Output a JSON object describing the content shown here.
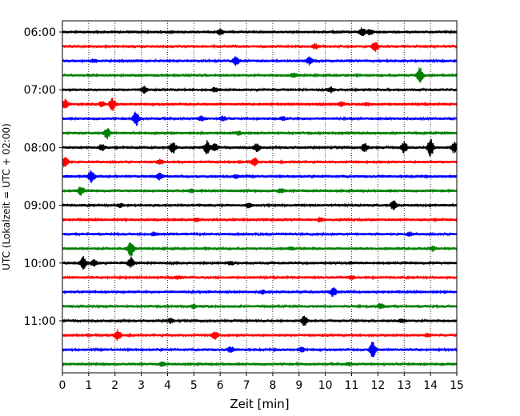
{
  "chart_data": {
    "type": "line",
    "title": "",
    "xlabel": "Zeit  [min]",
    "ylabel": "UTC (Lokalzeit = UTC + 02:00)",
    "xlim": [
      0,
      15
    ],
    "x_ticks": [
      "0",
      "1",
      "2",
      "3",
      "4",
      "5",
      "6",
      "7",
      "8",
      "9",
      "10",
      "11",
      "12",
      "13",
      "14",
      "15"
    ],
    "y_tick_labels": [
      "06:00",
      "07:00",
      "08:00",
      "09:00",
      "10:00",
      "11:00"
    ],
    "grid": "vertical dotted",
    "trace_interval_min": 15,
    "start_time": "06:00",
    "trace_colors": [
      "#000000",
      "#ff0000",
      "#0000ff",
      "#008000"
    ],
    "traces": [
      {
        "time": "06:00",
        "color": "#000000",
        "events": [
          [
            6.0,
            0.6
          ],
          [
            11.4,
            0.9
          ],
          [
            11.7,
            0.5
          ]
        ]
      },
      {
        "time": "06:15",
        "color": "#ff0000",
        "events": [
          [
            11.9,
            1.0
          ],
          [
            9.6,
            0.5
          ]
        ]
      },
      {
        "time": "06:30",
        "color": "#0000ff",
        "events": [
          [
            6.6,
            0.9
          ],
          [
            9.4,
            0.7
          ],
          [
            1.2,
            0.3
          ]
        ]
      },
      {
        "time": "06:45",
        "color": "#008000",
        "events": [
          [
            13.6,
            1.6
          ],
          [
            8.8,
            0.4
          ]
        ]
      },
      {
        "time": "07:00",
        "color": "#000000",
        "events": [
          [
            3.1,
            0.6
          ],
          [
            10.2,
            0.5
          ],
          [
            5.8,
            0.4
          ]
        ]
      },
      {
        "time": "07:15",
        "color": "#ff0000",
        "events": [
          [
            0.1,
            1.0
          ],
          [
            1.9,
            1.2
          ],
          [
            1.5,
            0.5
          ],
          [
            10.6,
            0.4
          ],
          [
            11.6,
            0.3
          ]
        ]
      },
      {
        "time": "07:30",
        "color": "#0000ff",
        "events": [
          [
            2.8,
            1.4
          ],
          [
            5.3,
            0.5
          ],
          [
            6.1,
            0.4
          ],
          [
            8.4,
            0.3
          ]
        ]
      },
      {
        "time": "07:45",
        "color": "#008000",
        "events": [
          [
            1.7,
            1.1
          ],
          [
            6.7,
            0.3
          ]
        ]
      },
      {
        "time": "08:00",
        "color": "#000000",
        "events": [
          [
            4.2,
            1.1
          ],
          [
            5.5,
            1.3
          ],
          [
            5.8,
            0.9
          ],
          [
            7.4,
            0.8
          ],
          [
            11.5,
            0.9
          ],
          [
            13.0,
            1.2
          ],
          [
            14.0,
            1.9
          ],
          [
            14.9,
            1.1
          ],
          [
            1.5,
            0.6
          ]
        ]
      },
      {
        "time": "08:15",
        "color": "#ff0000",
        "events": [
          [
            0.1,
            1.1
          ],
          [
            7.3,
            0.9
          ],
          [
            3.7,
            0.4
          ]
        ]
      },
      {
        "time": "08:30",
        "color": "#0000ff",
        "events": [
          [
            1.1,
            1.3
          ],
          [
            3.7,
            0.6
          ],
          [
            6.6,
            0.3
          ]
        ]
      },
      {
        "time": "08:45",
        "color": "#008000",
        "events": [
          [
            0.7,
            0.9
          ],
          [
            8.3,
            0.4
          ],
          [
            4.9,
            0.3
          ]
        ]
      },
      {
        "time": "09:00",
        "color": "#000000",
        "events": [
          [
            12.6,
            0.9
          ],
          [
            7.1,
            0.4
          ],
          [
            2.2,
            0.3
          ]
        ]
      },
      {
        "time": "09:15",
        "color": "#ff0000",
        "events": [
          [
            9.8,
            0.4
          ],
          [
            5.1,
            0.3
          ]
        ]
      },
      {
        "time": "09:30",
        "color": "#0000ff",
        "events": [
          [
            13.2,
            0.3
          ],
          [
            3.5,
            0.3
          ]
        ]
      },
      {
        "time": "09:45",
        "color": "#008000",
        "events": [
          [
            2.6,
            1.6
          ],
          [
            14.1,
            0.4
          ],
          [
            8.7,
            0.3
          ]
        ]
      },
      {
        "time": "10:00",
        "color": "#000000",
        "events": [
          [
            0.8,
            1.2
          ],
          [
            2.6,
            1.0
          ],
          [
            1.2,
            0.6
          ],
          [
            6.4,
            0.3
          ]
        ]
      },
      {
        "time": "10:15",
        "color": "#ff0000",
        "events": [
          [
            11.0,
            0.3
          ],
          [
            4.4,
            0.3
          ]
        ]
      },
      {
        "time": "10:30",
        "color": "#0000ff",
        "events": [
          [
            10.3,
            0.9
          ],
          [
            7.6,
            0.3
          ]
        ]
      },
      {
        "time": "10:45",
        "color": "#008000",
        "events": [
          [
            12.1,
            0.5
          ],
          [
            5.0,
            0.3
          ]
        ]
      },
      {
        "time": "11:00",
        "color": "#000000",
        "events": [
          [
            9.2,
            1.0
          ],
          [
            4.1,
            0.4
          ],
          [
            12.9,
            0.3
          ]
        ]
      },
      {
        "time": "11:15",
        "color": "#ff0000",
        "events": [
          [
            2.1,
            1.0
          ],
          [
            5.8,
            0.9
          ],
          [
            13.9,
            0.3
          ]
        ]
      },
      {
        "time": "11:30",
        "color": "#0000ff",
        "events": [
          [
            11.8,
            1.6
          ],
          [
            6.4,
            0.6
          ],
          [
            9.1,
            0.4
          ]
        ]
      },
      {
        "time": "11:45",
        "color": "#008000",
        "events": [
          [
            3.8,
            0.4
          ],
          [
            10.9,
            0.3
          ]
        ]
      }
    ]
  }
}
